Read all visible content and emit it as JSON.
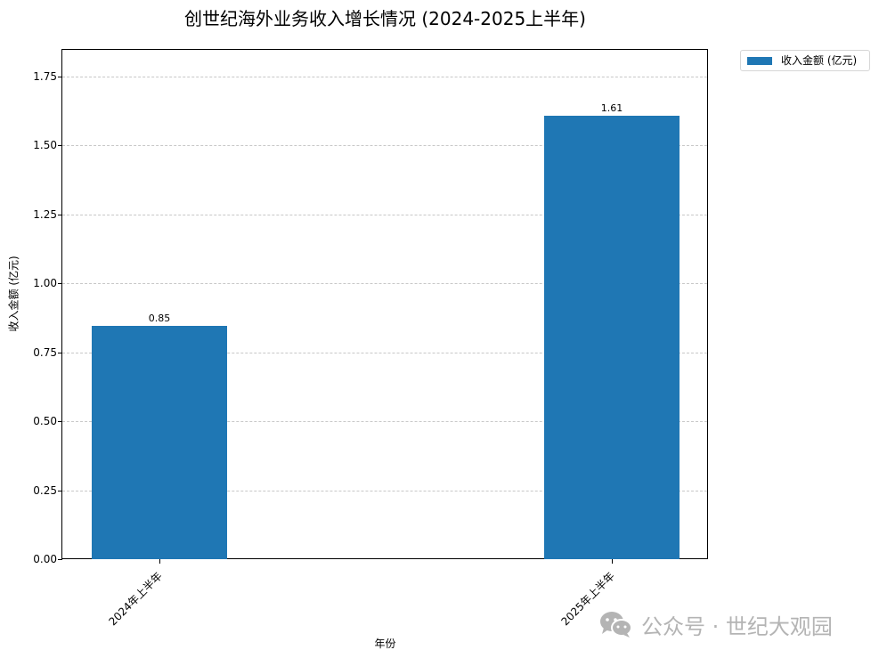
{
  "chart_data": {
    "type": "bar",
    "title": "创世纪海外业务收入增长情况 (2024-2025上半年)",
    "xlabel": "年份",
    "ylabel": "收入金额 (亿元)",
    "categories": [
      "2024年上半年",
      "2025年上半年"
    ],
    "series": [
      {
        "name": "收入金额 (亿元)",
        "values": [
          0.85,
          1.61
        ],
        "color": "#1f77b4"
      }
    ],
    "data_labels": [
      "0.85",
      "1.61"
    ],
    "ylim": [
      0,
      1.85
    ],
    "yticks": [
      0.0,
      0.25,
      0.5,
      0.75,
      1.0,
      1.25,
      1.5,
      1.75
    ],
    "ytick_labels": [
      "0.00",
      "0.25",
      "0.50",
      "0.75",
      "1.00",
      "1.25",
      "1.50",
      "1.75"
    ],
    "grid": {
      "axis": "y",
      "style": "dashed",
      "color": "#c8c8c8"
    },
    "legend": {
      "position": "outside upper right",
      "entries": [
        "收入金额 (亿元)"
      ]
    },
    "xtick_rotation": 45
  },
  "watermark": {
    "icon": "wechat-icon",
    "text": "公众号 · 世纪大观园",
    "color": "#b4b4b4"
  }
}
